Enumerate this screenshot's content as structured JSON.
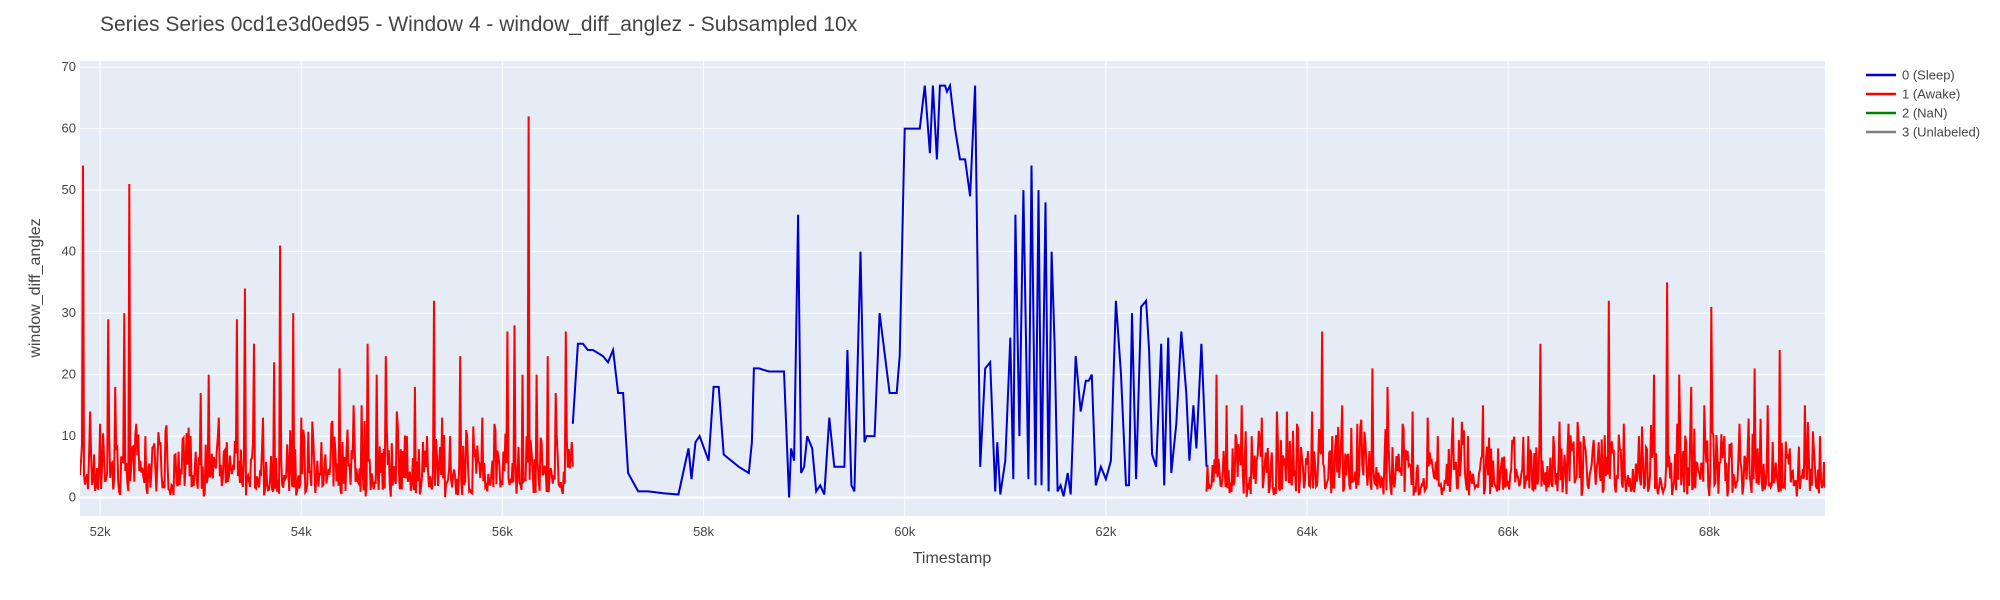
{
  "chart_data": {
    "type": "line",
    "title": "Series Series 0cd1e3d0ed95 - Window 4 - window_diff_anglez - Subsampled 10x",
    "xlabel": "Timestamp",
    "ylabel": "window_diff_anglez",
    "xlim": [
      51800,
      69150
    ],
    "ylim": [
      -3,
      71
    ],
    "x_ticks": [
      52000,
      54000,
      56000,
      58000,
      60000,
      62000,
      64000,
      66000,
      68000
    ],
    "x_tick_labels": [
      "52k",
      "54k",
      "56k",
      "58k",
      "60k",
      "62k",
      "64k",
      "66k",
      "68k"
    ],
    "y_ticks": [
      0,
      10,
      20,
      30,
      40,
      50,
      60,
      70
    ],
    "y_tick_labels": [
      "0",
      "10",
      "20",
      "30",
      "40",
      "50",
      "60",
      "70"
    ],
    "grid": true,
    "legend_position": "top-right",
    "plot_background": "#e5ecf6",
    "series": [
      {
        "name": "0 (Sleep)",
        "color": "#0000cc",
        "x": [
          56700,
          56750,
          56800,
          56850,
          56900,
          57000,
          57050,
          57100,
          57150,
          57200,
          57250,
          57350,
          57450,
          57600,
          57750,
          57850,
          57880,
          57920,
          57960,
          58050,
          58100,
          58150,
          58200,
          58350,
          58450,
          58480,
          58500,
          58550,
          58650,
          58800,
          58850,
          58870,
          58900,
          58940,
          58970,
          59000,
          59030,
          59080,
          59120,
          59160,
          59200,
          59250,
          59300,
          59350,
          59400,
          59430,
          59470,
          59500,
          59560,
          59600,
          59620,
          59700,
          59750,
          59850,
          59870,
          59920,
          59950,
          60000,
          60100,
          60150,
          60200,
          60250,
          60280,
          60320,
          60350,
          60400,
          60420,
          60450,
          60500,
          60550,
          60600,
          60650,
          60700,
          60750,
          60800,
          60850,
          60900,
          60920,
          60950,
          61000,
          61050,
          61080,
          61100,
          61140,
          61180,
          61230,
          61260,
          61300,
          61330,
          61360,
          61400,
          61430,
          61460,
          61490,
          61520,
          61550,
          61580,
          61620,
          61650,
          61700,
          61750,
          61800,
          61830,
          61860,
          61900,
          61950,
          62000,
          62050,
          62100,
          62150,
          62200,
          62230,
          62260,
          62300,
          62350,
          62400,
          62430,
          62460,
          62500,
          62550,
          62580,
          62620,
          62650,
          62700,
          62750,
          62800,
          62830,
          62870,
          62900,
          62950,
          63000
        ],
        "y": [
          12,
          25,
          25,
          24,
          24,
          23,
          22,
          24,
          17,
          17,
          4,
          1,
          1,
          0.7,
          0.5,
          8,
          3,
          9,
          10,
          6,
          18,
          18,
          7,
          5,
          4,
          9,
          21,
          21,
          20.5,
          20.5,
          0,
          8,
          6,
          46,
          4,
          5,
          10,
          8,
          1,
          2,
          0.5,
          13,
          5,
          5,
          5,
          24,
          2,
          1,
          40,
          9,
          10,
          10,
          30,
          17,
          17,
          17,
          23,
          60,
          60,
          60,
          67,
          56,
          67,
          55,
          67,
          67,
          66,
          67,
          60,
          55,
          55,
          49,
          67,
          5,
          21,
          22,
          1,
          9,
          0.5,
          6,
          26,
          3,
          46,
          10,
          50,
          3,
          54,
          2,
          50,
          2,
          48,
          1,
          40,
          25,
          1,
          2,
          0.2,
          4,
          0.5,
          23,
          14,
          19,
          19,
          20,
          2,
          5,
          3,
          6,
          32,
          20,
          2,
          2,
          30,
          3,
          31,
          32,
          24,
          7,
          5,
          25,
          2,
          26,
          4,
          12,
          27,
          17,
          6,
          15,
          8,
          25,
          5
        ],
        "rendering_note_excluded": true
      },
      {
        "name": "1 (Awake)",
        "color": "#ff0000",
        "x_segments": [
          [
            51800,
            56700
          ],
          [
            63000,
            69150
          ]
        ],
        "spikes": [
          [
            51830,
            54
          ],
          [
            51900,
            14
          ],
          [
            52000,
            12
          ],
          [
            52080,
            29
          ],
          [
            52150,
            18
          ],
          [
            52240,
            30
          ],
          [
            52290,
            51
          ],
          [
            52360,
            12
          ],
          [
            52450,
            10
          ],
          [
            52600,
            9
          ],
          [
            52750,
            7
          ],
          [
            52900,
            10
          ],
          [
            53000,
            17
          ],
          [
            53080,
            20
          ],
          [
            53180,
            13
          ],
          [
            53260,
            9
          ],
          [
            53360,
            29
          ],
          [
            53440,
            34
          ],
          [
            53530,
            25
          ],
          [
            53620,
            13
          ],
          [
            53730,
            22
          ],
          [
            53790,
            41
          ],
          [
            53920,
            30
          ],
          [
            54000,
            13
          ],
          [
            54200,
            9
          ],
          [
            54300,
            12
          ],
          [
            54380,
            21
          ],
          [
            54520,
            15
          ],
          [
            54600,
            15
          ],
          [
            54660,
            25
          ],
          [
            54750,
            20
          ],
          [
            54840,
            23
          ],
          [
            54950,
            14
          ],
          [
            55050,
            10
          ],
          [
            55130,
            18
          ],
          [
            55250,
            10
          ],
          [
            55320,
            32
          ],
          [
            55400,
            13
          ],
          [
            55480,
            10
          ],
          [
            55580,
            23
          ],
          [
            55650,
            10
          ],
          [
            55800,
            13
          ],
          [
            55930,
            11
          ],
          [
            56050,
            27
          ],
          [
            56120,
            28
          ],
          [
            56200,
            20
          ],
          [
            56260,
            62
          ],
          [
            56340,
            20
          ],
          [
            56450,
            23
          ],
          [
            56530,
            17
          ],
          [
            56630,
            27
          ],
          [
            63100,
            20
          ],
          [
            63200,
            15
          ],
          [
            63350,
            15
          ],
          [
            63450,
            10
          ],
          [
            63550,
            13
          ],
          [
            63700,
            14
          ],
          [
            63800,
            14
          ],
          [
            63900,
            12
          ],
          [
            64050,
            14
          ],
          [
            64150,
            27
          ],
          [
            64250,
            10
          ],
          [
            64350,
            15
          ],
          [
            64500,
            12
          ],
          [
            64650,
            21
          ],
          [
            64800,
            18
          ],
          [
            64950,
            12
          ],
          [
            65050,
            14
          ],
          [
            65200,
            13
          ],
          [
            65300,
            10
          ],
          [
            65450,
            13
          ],
          [
            65600,
            10
          ],
          [
            65750,
            15
          ],
          [
            65900,
            8
          ],
          [
            66050,
            9
          ],
          [
            66200,
            10
          ],
          [
            66320,
            25
          ],
          [
            66450,
            10
          ],
          [
            66600,
            12
          ],
          [
            66750,
            10
          ],
          [
            66900,
            9
          ],
          [
            67000,
            32
          ],
          [
            67150,
            12
          ],
          [
            67300,
            10
          ],
          [
            67450,
            20
          ],
          [
            67580,
            35
          ],
          [
            67700,
            20
          ],
          [
            67820,
            18
          ],
          [
            67950,
            15
          ],
          [
            68020,
            31
          ],
          [
            68150,
            10
          ],
          [
            68300,
            12
          ],
          [
            68450,
            21
          ],
          [
            68580,
            15
          ],
          [
            68700,
            24
          ],
          [
            68800,
            8
          ],
          [
            68950,
            15
          ],
          [
            69100,
            10
          ]
        ]
      },
      {
        "name": "2 (NaN)",
        "color": "#008000"
      },
      {
        "name": "3 (Unlabeled)",
        "color": "#808080"
      }
    ]
  }
}
